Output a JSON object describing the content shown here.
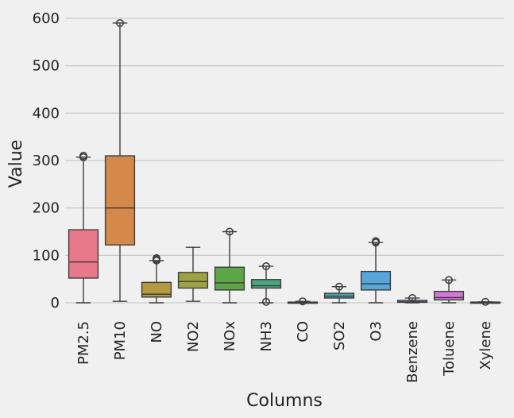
{
  "chart_data": {
    "type": "box",
    "xlabel": "Columns",
    "ylabel": "Value",
    "ylim": [
      -10,
      620
    ],
    "yticks": [
      0,
      100,
      200,
      300,
      400,
      500,
      600
    ],
    "grid": "y",
    "categories": [
      "PM2.5",
      "PM10",
      "NO",
      "NO2",
      "NOx",
      "NH3",
      "CO",
      "SO2",
      "O3",
      "Benzene",
      "Toluene",
      "Xylene"
    ],
    "boxes": [
      {
        "name": "PM2.5",
        "color": "#e8798b",
        "whisker_low": 0,
        "q1": 52,
        "median": 86,
        "q3": 154,
        "whisker_high": 307,
        "outliers": [
          307,
          310
        ]
      },
      {
        "name": "PM10",
        "color": "#d4884a",
        "whisker_low": 3,
        "q1": 122,
        "median": 200,
        "q3": 310,
        "whisker_high": 590,
        "outliers": [
          590
        ]
      },
      {
        "name": "NO",
        "color": "#b39a3f",
        "whisker_low": 0,
        "q1": 12,
        "median": 18,
        "q3": 43,
        "whisker_high": 89,
        "outliers": [
          89,
          92,
          94
        ]
      },
      {
        "name": "NO2",
        "color": "#9ea240",
        "whisker_low": 3,
        "q1": 31,
        "median": 45,
        "q3": 64,
        "whisker_high": 117,
        "outliers": []
      },
      {
        "name": "NOx",
        "color": "#5ca647",
        "whisker_low": 0,
        "q1": 27,
        "median": 42,
        "q3": 75,
        "whisker_high": 150,
        "outliers": [
          150
        ]
      },
      {
        "name": "NH3",
        "color": "#4aa67f",
        "whisker_low": 0,
        "q1": 31,
        "median": 36,
        "q3": 49,
        "whisker_high": 77,
        "outliers": [
          77,
          2
        ]
      },
      {
        "name": "CO",
        "color": "#4ca49a",
        "whisker_low": 0,
        "q1": 0.5,
        "median": 1,
        "q3": 1.5,
        "whisker_high": 3,
        "outliers": [
          3
        ]
      },
      {
        "name": "SO2",
        "color": "#4ba6b0",
        "whisker_low": 0,
        "q1": 10,
        "median": 14,
        "q3": 20,
        "whisker_high": 34,
        "outliers": [
          34
        ]
      },
      {
        "name": "O3",
        "color": "#56a5dc",
        "whisker_low": 0,
        "q1": 27,
        "median": 40,
        "q3": 66,
        "whisker_high": 127,
        "outliers": [
          127,
          130
        ]
      },
      {
        "name": "Benzene",
        "color": "#9f97e3",
        "whisker_low": 0,
        "q1": 1,
        "median": 2,
        "q3": 5,
        "whisker_high": 10,
        "outliers": [
          10
        ]
      },
      {
        "name": "Toluene",
        "color": "#d178d6",
        "whisker_low": 0,
        "q1": 6,
        "median": 11,
        "q3": 24,
        "whisker_high": 48,
        "outliers": [
          48
        ]
      },
      {
        "name": "Xylene",
        "color": "#e87ab9",
        "whisker_low": 0,
        "q1": 0,
        "median": 0.5,
        "q3": 1.5,
        "whisker_high": 2,
        "outliers": [
          2
        ]
      }
    ]
  }
}
